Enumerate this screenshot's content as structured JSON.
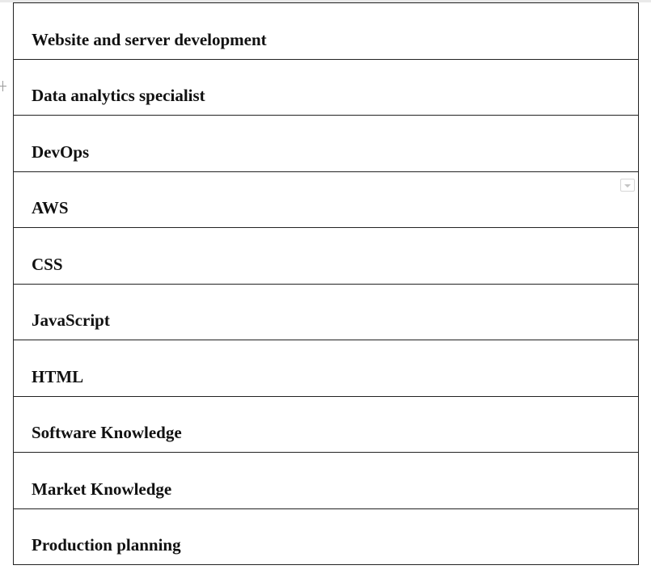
{
  "skills": {
    "items": [
      {
        "label": "Website and server development"
      },
      {
        "label": "Data analytics specialist"
      },
      {
        "label": "DevOps"
      },
      {
        "label": "AWS"
      },
      {
        "label": "CSS"
      },
      {
        "label": "JavaScript"
      },
      {
        "label": "HTML"
      },
      {
        "label": "Software Knowledge"
      },
      {
        "label": "Market Knowledge"
      },
      {
        "label": "Production planning"
      }
    ]
  },
  "icons": {
    "row_handle": "plus-icon",
    "dropdown": "dropdown-arrow-icon"
  }
}
